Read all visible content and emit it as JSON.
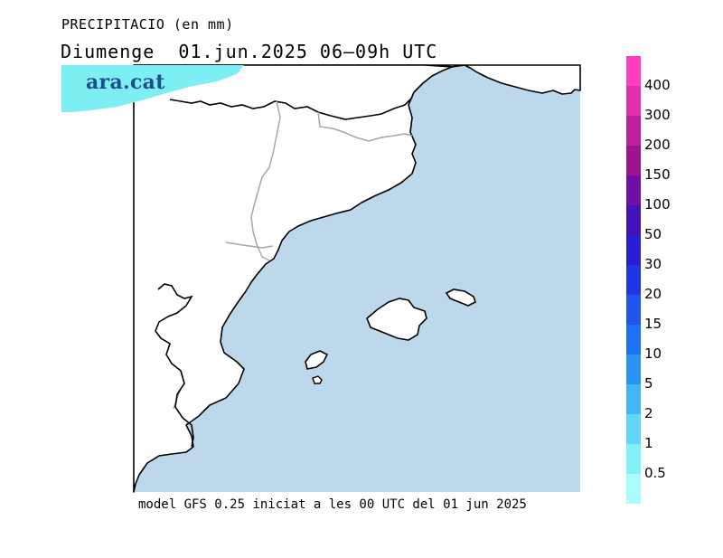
{
  "title": "PRECIPITACIO (en mm)",
  "subtitle": "Diumenge  01.jun.2025 06–09h UTC",
  "logo_text": "ara.cat",
  "footer": "model GFS 0.25 iniciat a les 00 UTC del 01 jun 2025",
  "colors": {
    "sea": "#bcd8ea",
    "land": "#ffffff",
    "coast": "#000000",
    "borders": "#a6a6a6",
    "precip_patch": "#7deef2"
  },
  "legend": {
    "labels": [
      "400",
      "300",
      "200",
      "150",
      "100",
      "50",
      "30",
      "20",
      "15",
      "10",
      "5",
      "2",
      "1",
      "0.5"
    ],
    "colors": [
      "#ff3fbf",
      "#e030b0",
      "#c0209f",
      "#9e128e",
      "#6f0fa6",
      "#4212b6",
      "#2a1fd0",
      "#1f37e3",
      "#1f55ec",
      "#1c71f1",
      "#2a92f3",
      "#43b7f6",
      "#63d6f8",
      "#85eff9",
      "#a9fbfc"
    ]
  }
}
